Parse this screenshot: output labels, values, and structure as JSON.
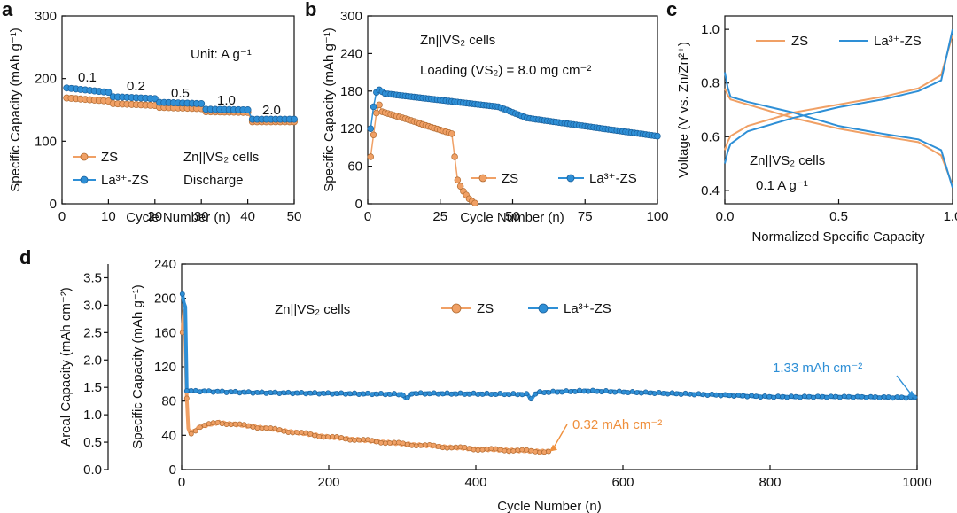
{
  "colors": {
    "zs": "#f0a065",
    "la": "#2e8fd6",
    "zs_dark": "#b06a30",
    "la_dark": "#1a5f9a",
    "annot_orange": "#ef8f3c",
    "annot_blue": "#2e8fd6"
  },
  "chart_data": [
    {
      "id": "a",
      "panel_label": "a",
      "type": "scatter",
      "title": "",
      "xlabel": "Cycle Number (n)",
      "ylabel": "Specific Capacity (mAh g⁻¹)",
      "xlim": [
        0,
        50
      ],
      "ylim": [
        0,
        300
      ],
      "xticks": [
        0,
        10,
        20,
        30,
        40,
        50
      ],
      "yticks": [
        0,
        100,
        200,
        300
      ],
      "annotations": {
        "unit": "Unit: A g⁻¹",
        "rates": [
          "0.1",
          "0.2",
          "0.5",
          "1.0",
          "2.0"
        ],
        "cell_line1": "Zn||VS₂ cells",
        "cell_line2": "Discharge"
      },
      "series": [
        {
          "name": "ZS",
          "segments": [
            [
              1,
              10,
              169,
              164
            ],
            [
              11,
              20,
              160,
              157
            ],
            [
              21,
              30,
              154,
              152
            ],
            [
              31,
              40,
              147,
              146
            ],
            [
              41,
              50,
              131,
              131
            ]
          ]
        },
        {
          "name": "La³⁺-ZS",
          "segments": [
            [
              1,
              10,
              185,
              178
            ],
            [
              11,
              20,
              171,
              168
            ],
            [
              21,
              30,
              162,
              160
            ],
            [
              31,
              40,
              151,
              150
            ],
            [
              41,
              50,
              135,
              135
            ]
          ]
        }
      ]
    },
    {
      "id": "b",
      "panel_label": "b",
      "type": "scatter",
      "xlabel": "Cycle Number (n)",
      "ylabel": "Specific Capacity (mAh g⁻¹)",
      "xlim": [
        0,
        100
      ],
      "ylim": [
        0,
        300
      ],
      "xticks": [
        0,
        25,
        50,
        75,
        100
      ],
      "yticks": [
        0,
        60,
        120,
        180,
        240,
        300
      ],
      "annotations": {
        "cell": "Zn||VS₂ cells",
        "loading": "Loading (VS₂) = 8.0 mg cm⁻²"
      },
      "series": [
        {
          "name": "ZS",
          "points": [
            [
              1,
              75
            ],
            [
              2,
              110
            ],
            [
              3,
              145
            ],
            [
              4,
              158
            ],
            [
              5,
              147
            ],
            [
              10,
              140
            ],
            [
              15,
              133
            ],
            [
              20,
              125
            ],
            [
              25,
              118
            ],
            [
              29,
              112
            ],
            [
              30,
              75
            ],
            [
              31,
              38
            ],
            [
              32,
              28
            ],
            [
              33,
              20
            ],
            [
              34,
              14
            ],
            [
              35,
              8
            ],
            [
              36,
              4
            ],
            [
              37,
              1
            ]
          ]
        },
        {
          "name": "La³⁺-ZS",
          "points": [
            [
              1,
              120
            ],
            [
              2,
              155
            ],
            [
              3,
              178
            ],
            [
              4,
              182
            ],
            [
              6,
              176
            ],
            [
              15,
              171
            ],
            [
              30,
              163
            ],
            [
              45,
              155
            ],
            [
              55,
              137
            ],
            [
              75,
              124
            ],
            [
              100,
              108
            ]
          ]
        }
      ]
    },
    {
      "id": "c",
      "panel_label": "c",
      "type": "line",
      "xlabel": "Normalized Specific Capacity",
      "ylabel": "Voltage (V vs. Zn/Zn²⁺)",
      "xlim": [
        0,
        1
      ],
      "ylim": [
        0.35,
        1.05
      ],
      "xticks": [
        0.0,
        0.5,
        1.0
      ],
      "yticks": [
        0.4,
        0.6,
        0.8,
        1.0
      ],
      "xtick_labels": [
        "0.0",
        "0.5",
        "1.0"
      ],
      "ytick_labels": [
        "0.4",
        "0.6",
        "0.8",
        "1.0"
      ],
      "annotations": {
        "cell": "Zn||VS₂ cells",
        "rate": "0.1 A g⁻¹"
      },
      "series": [
        {
          "name": "ZS",
          "charge": [
            [
              0,
              0.55
            ],
            [
              0.02,
              0.6
            ],
            [
              0.1,
              0.64
            ],
            [
              0.3,
              0.69
            ],
            [
              0.5,
              0.72
            ],
            [
              0.7,
              0.75
            ],
            [
              0.85,
              0.78
            ],
            [
              0.95,
              0.83
            ],
            [
              1.0,
              0.98
            ]
          ],
          "discharge": [
            [
              0,
              0.78
            ],
            [
              0.02,
              0.74
            ],
            [
              0.1,
              0.72
            ],
            [
              0.3,
              0.67
            ],
            [
              0.5,
              0.63
            ],
            [
              0.7,
              0.6
            ],
            [
              0.85,
              0.58
            ],
            [
              0.95,
              0.53
            ],
            [
              1.0,
              0.42
            ]
          ]
        },
        {
          "name": "La³⁺-ZS",
          "charge": [
            [
              0,
              0.5
            ],
            [
              0.02,
              0.57
            ],
            [
              0.1,
              0.62
            ],
            [
              0.3,
              0.67
            ],
            [
              0.5,
              0.71
            ],
            [
              0.7,
              0.74
            ],
            [
              0.85,
              0.77
            ],
            [
              0.95,
              0.81
            ],
            [
              1.0,
              1.0
            ]
          ],
          "discharge": [
            [
              0,
              0.84
            ],
            [
              0.02,
              0.75
            ],
            [
              0.1,
              0.73
            ],
            [
              0.3,
              0.69
            ],
            [
              0.5,
              0.64
            ],
            [
              0.7,
              0.61
            ],
            [
              0.85,
              0.59
            ],
            [
              0.95,
              0.55
            ],
            [
              1.0,
              0.41
            ]
          ]
        }
      ]
    },
    {
      "id": "d",
      "panel_label": "d",
      "type": "line",
      "xlabel": "Cycle Number (n)",
      "ylabel": "Specific Capacity (mAh g⁻¹)",
      "ylabel2": "Areal Capacity (mAh cm⁻²)",
      "xlim": [
        0,
        1000
      ],
      "ylim": [
        0,
        240
      ],
      "ylim2": [
        0,
        3.75
      ],
      "xticks": [
        0,
        200,
        400,
        600,
        800,
        1000
      ],
      "yticks": [
        0,
        40,
        80,
        120,
        160,
        200,
        240
      ],
      "yticks2": [
        0.0,
        0.5,
        1.0,
        1.5,
        2.0,
        2.5,
        3.0,
        3.5
      ],
      "ytick2_labels": [
        "0.0",
        "0.5",
        "1.0",
        "1.5",
        "2.0",
        "2.5",
        "3.0",
        "3.5"
      ],
      "annotations": {
        "cell": "Zn||VS₂ cells",
        "la_value": "1.33 mAh cm⁻²",
        "zs_value": "0.32 mAh cm⁻²"
      },
      "series": [
        {
          "name": "ZS",
          "points": [
            [
              1,
              160
            ],
            [
              3,
              185
            ],
            [
              5,
              150
            ],
            [
              8,
              50
            ],
            [
              12,
              42
            ],
            [
              25,
              50
            ],
            [
              50,
              55
            ],
            [
              100,
              50
            ],
            [
              200,
              38
            ],
            [
              300,
              30
            ],
            [
              400,
              24
            ],
            [
              500,
              21
            ]
          ]
        },
        {
          "name": "La³⁺-ZS",
          "points": [
            [
              1,
              205
            ],
            [
              3,
              195
            ],
            [
              5,
              190
            ],
            [
              7,
              92
            ],
            [
              100,
              90
            ],
            [
              300,
              88
            ],
            [
              306,
              82
            ],
            [
              312,
              89
            ],
            [
              470,
              88
            ],
            [
              476,
              82
            ],
            [
              482,
              90
            ],
            [
              550,
              92
            ],
            [
              700,
              88
            ],
            [
              800,
              85
            ],
            [
              900,
              85
            ],
            [
              1000,
              84
            ]
          ]
        }
      ]
    }
  ]
}
